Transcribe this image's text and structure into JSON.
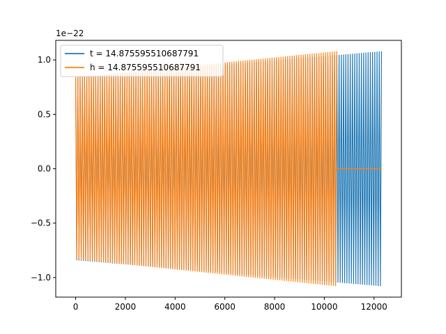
{
  "chart_data": {
    "type": "line",
    "title": "",
    "xlabel": "",
    "ylabel": "",
    "y_offset_label": "1e−22",
    "xlim": [
      -800,
      13100
    ],
    "ylim": [
      -1.18,
      1.18
    ],
    "x_ticks": [
      0,
      2000,
      4000,
      6000,
      8000,
      10000,
      12000
    ],
    "x_tick_labels": [
      "0",
      "2000",
      "4000",
      "6000",
      "8000",
      "10000",
      "12000"
    ],
    "y_ticks": [
      -1.0,
      -0.5,
      0.0,
      0.5,
      1.0
    ],
    "y_tick_labels": [
      "−1.0",
      "−0.5",
      "0.0",
      "0.5",
      "1.0"
    ],
    "grid": false,
    "legend_position": "top-left",
    "series": [
      {
        "name": "t = 14.875595510687791",
        "color": "#1f77b4",
        "x_end": 12300,
        "envelope_start": [
          -0.84,
          0.84
        ],
        "envelope_end": [
          -1.08,
          1.08
        ]
      },
      {
        "name": "h = 14.875595510687791",
        "color": "#ff7f0e",
        "x_end": 10500,
        "envelope_start": [
          -0.83,
          0.84
        ],
        "envelope_end": [
          -1.08,
          1.08
        ],
        "tail_x_end": 12300,
        "tail_value": 0.0
      }
    ]
  }
}
